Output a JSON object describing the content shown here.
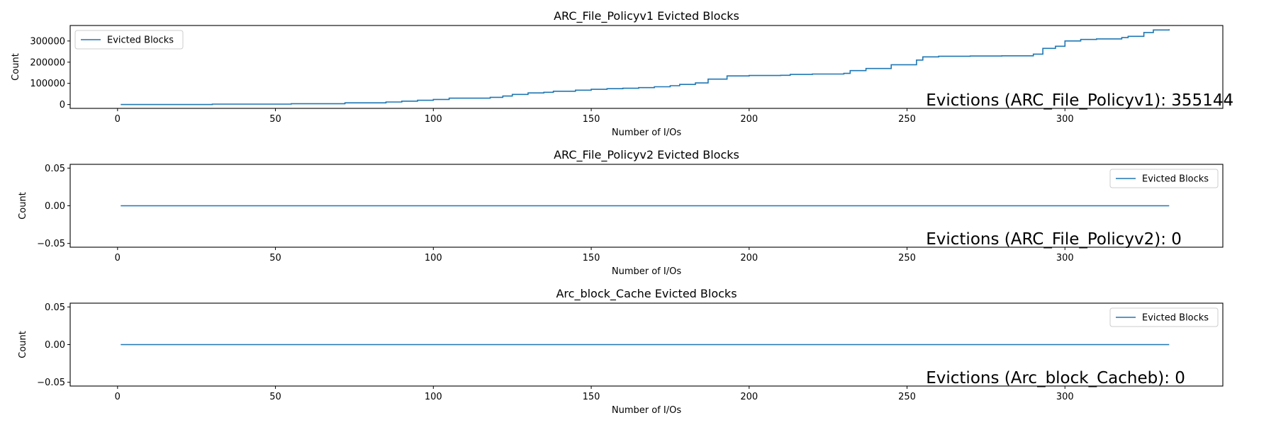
{
  "chart_data": [
    {
      "type": "line",
      "title": "ARC_File_Policyv1 Evicted Blocks",
      "xlabel": "Number of I/Os",
      "ylabel": "Count",
      "xlim": [
        -15,
        350
      ],
      "ylim": [
        -18000,
        373000
      ],
      "xticks": [
        0,
        50,
        100,
        150,
        200,
        250,
        300
      ],
      "yticks": [
        0,
        100000,
        200000,
        300000
      ],
      "legend_loc": "upper left",
      "annotation": "Evictions (ARC_File_Policyv1): 355144",
      "series": [
        {
          "name": "Evicted Blocks",
          "color": "#1f77b4",
          "x": [
            1,
            30,
            55,
            72,
            85,
            90,
            95,
            100,
            105,
            118,
            122,
            125,
            130,
            135,
            138,
            145,
            150,
            155,
            160,
            165,
            170,
            175,
            178,
            183,
            187,
            193,
            200,
            210,
            213,
            220,
            230,
            232,
            237,
            245,
            253,
            255,
            260,
            270,
            280,
            290,
            293,
            297,
            300,
            305,
            310,
            318,
            320,
            325,
            328,
            333
          ],
          "y": [
            0,
            2000,
            4000,
            8000,
            12000,
            16000,
            20000,
            24000,
            30000,
            34000,
            40000,
            48000,
            55000,
            58000,
            63000,
            68000,
            72000,
            75000,
            77000,
            80000,
            84000,
            89000,
            95000,
            102000,
            120000,
            135000,
            137000,
            138000,
            142000,
            144000,
            147000,
            160000,
            170000,
            188000,
            210000,
            225000,
            228000,
            229000,
            230000,
            238000,
            265000,
            275000,
            300000,
            307000,
            310000,
            316000,
            322000,
            340000,
            352000,
            355144
          ]
        }
      ]
    },
    {
      "type": "line",
      "title": "ARC_File_Policyv2 Evicted Blocks",
      "xlabel": "Number of I/Os",
      "ylabel": "Count",
      "xlim": [
        -15,
        350
      ],
      "ylim": [
        -0.055,
        0.055
      ],
      "xticks": [
        0,
        50,
        100,
        150,
        200,
        250,
        300
      ],
      "yticks": [
        -0.05,
        0.0,
        0.05
      ],
      "ytick_labels": [
        "−0.05",
        "0.00",
        "0.05"
      ],
      "legend_loc": "upper right",
      "annotation": "Evictions (ARC_File_Policyv2): 0",
      "series": [
        {
          "name": "Evicted Blocks",
          "color": "#1f77b4",
          "x": [
            1,
            333
          ],
          "y": [
            0,
            0
          ]
        }
      ]
    },
    {
      "type": "line",
      "title": "Arc_block_Cache Evicted Blocks",
      "xlabel": "Number of I/Os",
      "ylabel": "Count",
      "xlim": [
        -15,
        350
      ],
      "ylim": [
        -0.055,
        0.055
      ],
      "xticks": [
        0,
        50,
        100,
        150,
        200,
        250,
        300
      ],
      "yticks": [
        -0.05,
        0.0,
        0.05
      ],
      "ytick_labels": [
        "−0.05",
        "0.00",
        "0.05"
      ],
      "legend_loc": "upper right",
      "annotation": "Evictions (Arc_block_Cacheb): 0",
      "series": [
        {
          "name": "Evicted Blocks",
          "color": "#1f77b4",
          "x": [
            1,
            333
          ],
          "y": [
            0,
            0
          ]
        }
      ]
    }
  ]
}
